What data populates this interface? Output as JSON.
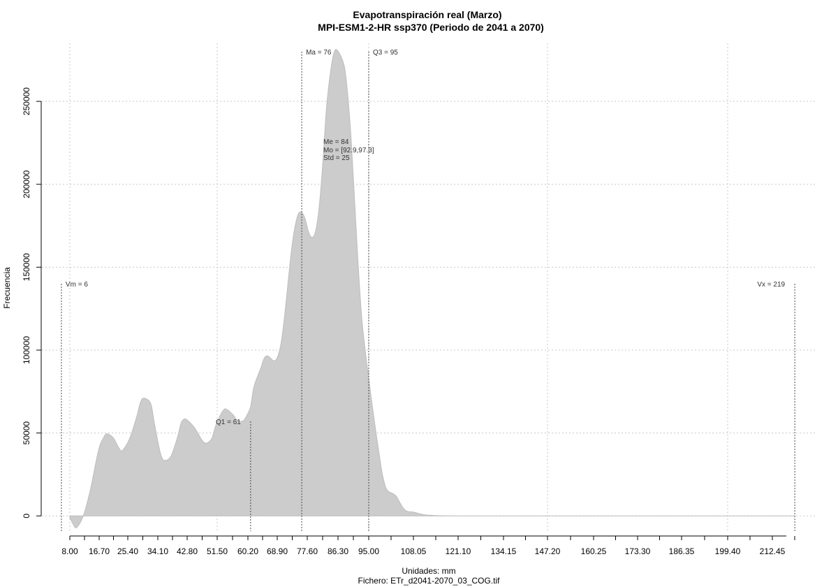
{
  "chart_data": {
    "type": "area",
    "title": "Evapotranspiración real (Marzo)",
    "subtitle": "MPI-ESM1-2-HR ssp370 (Periodo de 2041 a 2070)",
    "xlabel": "Unidades: mm",
    "file_label": "Fichero: ETr_d2041-2070_03_COG.tif",
    "ylabel": "Frecuencia",
    "xlim": [
      5.5,
      219
    ],
    "ylim": [
      -10000,
      285000
    ],
    "x_ticks": [
      8.0,
      16.7,
      25.4,
      34.1,
      42.8,
      51.5,
      60.2,
      68.9,
      77.6,
      86.3,
      95.0,
      108.05,
      121.1,
      134.15,
      147.2,
      160.25,
      173.3,
      186.35,
      199.4,
      212.45
    ],
    "x_tick_labels": [
      "8.00",
      "16.70",
      "25.40",
      "34.10",
      "42.80",
      "51.50",
      "60.20",
      "68.90",
      "77.60",
      "86.30",
      "95.00",
      "108.05",
      "121.10",
      "134.15",
      "147.20",
      "160.25",
      "173.30",
      "186.35",
      "199.40",
      "212.45"
    ],
    "y_ticks": [
      0,
      50000,
      100000,
      150000,
      200000,
      250000
    ],
    "y_tick_labels": [
      "0",
      "50000",
      "100000",
      "150000",
      "200000",
      "250000"
    ],
    "grid": true,
    "fill_color": "#cccccc",
    "density": {
      "x": [
        8,
        9,
        10,
        12,
        14,
        16,
        17,
        18,
        19,
        21,
        23,
        24,
        26,
        28,
        29,
        30,
        32,
        33,
        34,
        35,
        36,
        38,
        40,
        41,
        42,
        43,
        45,
        47,
        48,
        49,
        50,
        51,
        52,
        53,
        54,
        56,
        57,
        58,
        59,
        60,
        61,
        62,
        64,
        65,
        66,
        67,
        68,
        69,
        70,
        71,
        72,
        73,
        74,
        75,
        76,
        77,
        78,
        79,
        80,
        81,
        82,
        83,
        84,
        85,
        86,
        88,
        89,
        90,
        91,
        92,
        93,
        94,
        95,
        96,
        97,
        98,
        99,
        100,
        101,
        102,
        103,
        104,
        105,
        106,
        107,
        108,
        109,
        110,
        111,
        112,
        113,
        114,
        115,
        116,
        117,
        118,
        119,
        120,
        121,
        122,
        123,
        124,
        125,
        126,
        128,
        130,
        132,
        134,
        136,
        140,
        145,
        155,
        170,
        190,
        210,
        219
      ],
      "y": [
        -1000,
        -5000,
        -7000,
        0,
        15000,
        35000,
        43000,
        47000,
        49500,
        47000,
        40000,
        40000,
        47000,
        60000,
        68000,
        71000,
        68000,
        57000,
        46000,
        37000,
        33500,
        36000,
        48000,
        56000,
        58500,
        57500,
        53000,
        46000,
        44000,
        44500,
        47000,
        54000,
        59000,
        63000,
        64500,
        61000,
        58000,
        57000,
        57500,
        61000,
        66000,
        78000,
        89000,
        95000,
        96500,
        95000,
        93500,
        96000,
        104000,
        120000,
        140000,
        160000,
        174000,
        182000,
        183000,
        179000,
        171000,
        168000,
        172000,
        187000,
        213000,
        245000,
        265000,
        278000,
        281000,
        272000,
        255000,
        228000,
        190000,
        152000,
        120000,
        100000,
        83000,
        67000,
        52000,
        38000,
        25000,
        17000,
        14500,
        13500,
        12000,
        8500,
        5000,
        3000,
        2500,
        2300,
        1800,
        1200,
        800,
        500,
        400,
        300,
        200,
        150,
        100,
        80,
        60,
        50,
        40,
        30,
        25,
        20,
        15,
        12,
        10,
        8,
        6,
        5,
        4,
        3,
        2,
        1,
        1,
        1,
        1,
        0
      ]
    },
    "markers": [
      {
        "label": "Vm = 6",
        "x": 5.5,
        "y_top": 140000,
        "label_side": "right"
      },
      {
        "label": "Q1 = 61",
        "x": 61,
        "y_top": 57000,
        "label_side": "left"
      },
      {
        "label": "Ma = 76",
        "x": 76,
        "y_top": 280000,
        "label_side": "right"
      },
      {
        "label": "Q3 = 95",
        "x": 95,
        "y_top": 280000,
        "label_side": "right"
      },
      {
        "label": "Vx = 219",
        "x": 219,
        "y_top": 140000,
        "label_side": "left"
      }
    ],
    "stats": [
      "Me = 84",
      "Mo = [92.9,97.3]",
      "Std = 25"
    ]
  }
}
